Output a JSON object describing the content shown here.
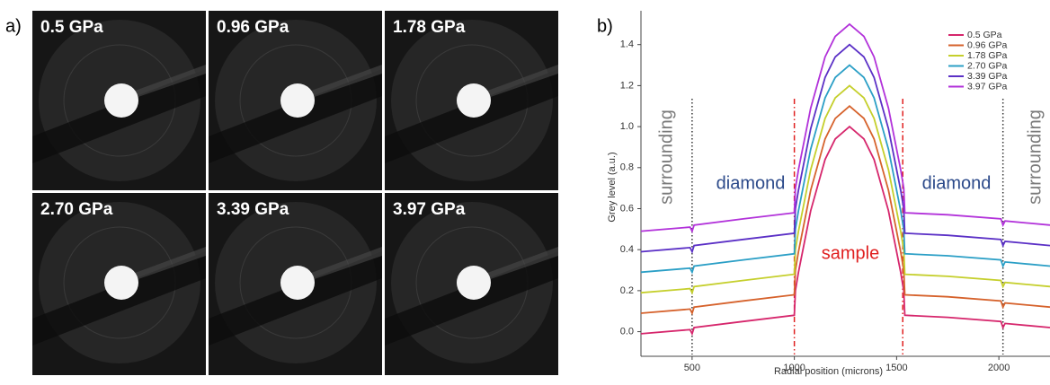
{
  "panel_labels": [
    "a)",
    "b)"
  ],
  "images": [
    {
      "label": "0.5 GPa"
    },
    {
      "label": "0.96 GPa"
    },
    {
      "label": "1.78 GPa"
    },
    {
      "label": "2.70 GPa"
    },
    {
      "label": "3.39 GPa"
    },
    {
      "label": "3.97 GPa"
    }
  ],
  "chart_data": {
    "type": "line",
    "x_label": "Radial position (microns)",
    "y_label": "Grey level (a.u.)",
    "x": [
      250,
      490,
      500,
      510,
      750,
      1000,
      1005,
      1020,
      1080,
      1150,
      1200,
      1270,
      1340,
      1390,
      1460,
      1520,
      1535,
      1540,
      1750,
      2010,
      2020,
      2030,
      2250
    ],
    "series": [
      {
        "name": "0.5 GPa",
        "color": "#d6266c",
        "values": [
          -0.01,
          0.01,
          -0.01,
          0.02,
          0.05,
          0.08,
          0.2,
          0.29,
          0.59,
          0.84,
          0.94,
          1.0,
          0.94,
          0.84,
          0.59,
          0.29,
          0.2,
          0.08,
          0.07,
          0.05,
          0.02,
          0.04,
          0.02
        ]
      },
      {
        "name": "0.96 GPa",
        "color": "#d6622c",
        "values": [
          0.09,
          0.11,
          0.09,
          0.12,
          0.15,
          0.18,
          0.3,
          0.39,
          0.69,
          0.94,
          1.04,
          1.1,
          1.04,
          0.94,
          0.69,
          0.39,
          0.3,
          0.18,
          0.17,
          0.15,
          0.12,
          0.14,
          0.12
        ]
      },
      {
        "name": "1.78 GPa",
        "color": "#c5cf2c",
        "values": [
          0.19,
          0.21,
          0.19,
          0.22,
          0.25,
          0.28,
          0.4,
          0.49,
          0.79,
          1.04,
          1.14,
          1.2,
          1.14,
          1.04,
          0.79,
          0.49,
          0.4,
          0.28,
          0.27,
          0.25,
          0.22,
          0.24,
          0.22
        ]
      },
      {
        "name": "2.70 GPa",
        "color": "#2b9fc6",
        "values": [
          0.29,
          0.31,
          0.29,
          0.32,
          0.35,
          0.38,
          0.5,
          0.59,
          0.89,
          1.14,
          1.24,
          1.3,
          1.24,
          1.14,
          0.89,
          0.59,
          0.5,
          0.38,
          0.37,
          0.35,
          0.32,
          0.34,
          0.32
        ]
      },
      {
        "name": "3.39 GPa",
        "color": "#5b30c6",
        "values": [
          0.39,
          0.41,
          0.39,
          0.42,
          0.45,
          0.48,
          0.6,
          0.69,
          0.99,
          1.24,
          1.34,
          1.4,
          1.34,
          1.24,
          0.99,
          0.69,
          0.6,
          0.48,
          0.47,
          0.45,
          0.42,
          0.44,
          0.42
        ]
      },
      {
        "name": "3.97 GPa",
        "color": "#b232da",
        "values": [
          0.49,
          0.51,
          0.49,
          0.52,
          0.55,
          0.58,
          0.7,
          0.79,
          1.09,
          1.34,
          1.44,
          1.5,
          1.44,
          1.34,
          1.09,
          0.79,
          0.7,
          0.58,
          0.57,
          0.55,
          0.52,
          0.54,
          0.52
        ]
      }
    ],
    "xlim": [
      250,
      2250
    ],
    "ylim": [
      -0.12,
      1.53
    ],
    "xticks": [
      500,
      1000,
      1500,
      2000
    ],
    "yticks": [
      {
        "value": 0,
        "label": "0.0"
      },
      0.2,
      0.4,
      0.6,
      0.8,
      {
        "value": 1,
        "label": "1.0"
      },
      1.2,
      1.4
    ],
    "vlines": [
      {
        "x": 500,
        "color": "#333333"
      },
      {
        "x": 1000,
        "color": "#e02020"
      },
      {
        "x": 1530,
        "color": "#e02020"
      },
      {
        "x": 2020,
        "color": "#333333"
      }
    ],
    "annotations": [
      "surrounding",
      "diamond",
      "sample",
      "diamond",
      "surrounding"
    ],
    "legend": "upper right"
  }
}
